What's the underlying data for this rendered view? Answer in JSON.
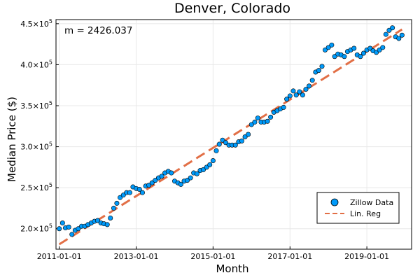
{
  "chart_data": {
    "type": "scatter",
    "title": "Denver, Colorado",
    "xlabel": "Month",
    "ylabel": "Median Price ($)",
    "annotation": "m = 2426.037",
    "xlim": [
      "2010-12-01",
      "2020-03-01"
    ],
    "ylim": [
      175000,
      455000
    ],
    "x_ticks": [
      "2011-01-01",
      "2013-01-01",
      "2015-01-01",
      "2017-01-01",
      "2019-01-01"
    ],
    "y_ticks": [
      {
        "value": 200000,
        "mantissa": "2.0",
        "exp": "5"
      },
      {
        "value": 250000,
        "mantissa": "2.5",
        "exp": "5"
      },
      {
        "value": 300000,
        "mantissa": "3.0",
        "exp": "5"
      },
      {
        "value": 350000,
        "mantissa": "3.5",
        "exp": "5"
      },
      {
        "value": 400000,
        "mantissa": "4.0",
        "exp": "5"
      },
      {
        "value": 450000,
        "mantissa": "4.5",
        "exp": "5"
      }
    ],
    "grid": true,
    "legend_position": "bottom-right",
    "series": [
      {
        "name": "Zillow Data",
        "kind": "scatter",
        "color": "#009AFA",
        "x": [
          "2011-01-01",
          "2011-02-01",
          "2011-03-01",
          "2011-04-01",
          "2011-05-01",
          "2011-06-01",
          "2011-07-01",
          "2011-08-01",
          "2011-09-01",
          "2011-10-01",
          "2011-11-01",
          "2011-12-01",
          "2012-01-01",
          "2012-02-01",
          "2012-03-01",
          "2012-04-01",
          "2012-05-01",
          "2012-06-01",
          "2012-07-01",
          "2012-08-01",
          "2012-09-01",
          "2012-10-01",
          "2012-11-01",
          "2012-12-01",
          "2013-01-01",
          "2013-02-01",
          "2013-03-01",
          "2013-04-01",
          "2013-05-01",
          "2013-06-01",
          "2013-07-01",
          "2013-08-01",
          "2013-09-01",
          "2013-10-01",
          "2013-11-01",
          "2013-12-01",
          "2014-01-01",
          "2014-02-01",
          "2014-03-01",
          "2014-04-01",
          "2014-05-01",
          "2014-06-01",
          "2014-07-01",
          "2014-08-01",
          "2014-09-01",
          "2014-10-01",
          "2014-11-01",
          "2014-12-01",
          "2015-01-01",
          "2015-02-01",
          "2015-03-01",
          "2015-04-01",
          "2015-05-01",
          "2015-06-01",
          "2015-07-01",
          "2015-08-01",
          "2015-09-01",
          "2015-10-01",
          "2015-11-01",
          "2015-12-01",
          "2016-01-01",
          "2016-02-01",
          "2016-03-01",
          "2016-04-01",
          "2016-05-01",
          "2016-06-01",
          "2016-07-01",
          "2016-08-01",
          "2016-09-01",
          "2016-10-01",
          "2016-11-01",
          "2016-12-01",
          "2017-01-01",
          "2017-02-01",
          "2017-03-01",
          "2017-04-01",
          "2017-05-01",
          "2017-06-01",
          "2017-07-01",
          "2017-08-01",
          "2017-09-01",
          "2017-10-01",
          "2017-11-01",
          "2017-12-01",
          "2018-01-01",
          "2018-02-01",
          "2018-03-01",
          "2018-04-01",
          "2018-05-01",
          "2018-06-01",
          "2018-07-01",
          "2018-08-01",
          "2018-09-01",
          "2018-10-01",
          "2018-11-01",
          "2018-12-01",
          "2019-01-01",
          "2019-02-01",
          "2019-03-01",
          "2019-04-01",
          "2019-05-01",
          "2019-06-01",
          "2019-07-01",
          "2019-08-01",
          "2019-09-01",
          "2019-10-01",
          "2019-11-01",
          "2019-12-01"
        ],
        "y": [
          200000,
          207000,
          201000,
          202000,
          193000,
          198000,
          200000,
          203000,
          203000,
          205000,
          207000,
          209000,
          210000,
          207000,
          206000,
          205000,
          213000,
          225000,
          231000,
          238000,
          241000,
          244000,
          244000,
          251000,
          249000,
          248000,
          244000,
          252000,
          253000,
          256000,
          259000,
          262000,
          264000,
          268000,
          270000,
          268000,
          258000,
          256000,
          254000,
          258000,
          259000,
          262000,
          268000,
          267000,
          271000,
          272000,
          275000,
          278000,
          283000,
          295000,
          303000,
          308000,
          305000,
          302000,
          302000,
          302000,
          306000,
          307000,
          312000,
          315000,
          327000,
          330000,
          335000,
          330000,
          330000,
          331000,
          336000,
          342000,
          344000,
          346000,
          348000,
          358000,
          362000,
          368000,
          363000,
          367000,
          363000,
          370000,
          374000,
          381000,
          391000,
          393000,
          398000,
          418000,
          421000,
          424000,
          410000,
          413000,
          412000,
          410000,
          416000,
          418000,
          420000,
          412000,
          410000,
          414000,
          418000,
          420000,
          417000,
          415000,
          418000,
          421000,
          437000,
          442000,
          445000,
          434000,
          432000,
          436000
        ]
      },
      {
        "name": "Lin. Reg",
        "kind": "line",
        "style": "dashed",
        "color": "#E26F46",
        "x": [
          "2011-01-01",
          "2019-12-01"
        ],
        "y": [
          181000,
          443000
        ]
      }
    ]
  }
}
